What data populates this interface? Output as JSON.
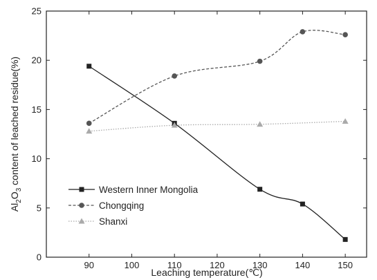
{
  "chart_data": {
    "type": "line",
    "xlabel": "Leaching temperature(℃)",
    "ylabel_parts": {
      "pre": "Al",
      "sub1": "2",
      "mid": "O",
      "sub2": "3",
      "post": " content of leached residue(%)"
    },
    "xlim": [
      80,
      155
    ],
    "ylim": [
      0,
      25
    ],
    "xticks": [
      90,
      100,
      110,
      120,
      130,
      140,
      150
    ],
    "yticks": [
      0,
      5,
      10,
      15,
      20,
      25
    ],
    "grid": false,
    "legend_position": "lower-left",
    "series": [
      {
        "name": "Western Inner Mongolia",
        "marker": "square",
        "line_style": "solid",
        "color": "#222222",
        "x": [
          90,
          110,
          130,
          140,
          150
        ],
        "y": [
          19.4,
          13.6,
          6.9,
          5.4,
          1.8
        ]
      },
      {
        "name": "Chongqing",
        "marker": "circle",
        "line_style": "dashed",
        "color": "#555555",
        "x": [
          90,
          110,
          130,
          140,
          150
        ],
        "y": [
          13.6,
          18.4,
          19.9,
          22.9,
          22.6
        ]
      },
      {
        "name": "Shanxi",
        "marker": "triangle",
        "line_style": "dotted",
        "color": "#aaaaaa",
        "x": [
          90,
          110,
          130,
          150
        ],
        "y": [
          12.8,
          13.4,
          13.5,
          13.8
        ]
      }
    ]
  }
}
